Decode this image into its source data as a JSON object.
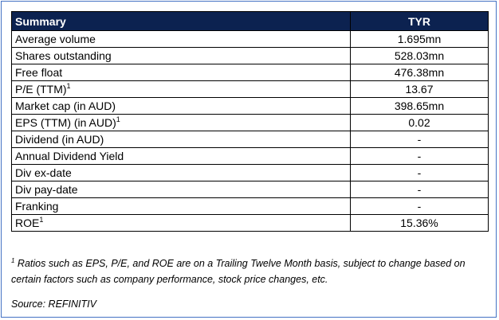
{
  "table": {
    "header": {
      "label": "Summary",
      "value": "TYR"
    },
    "rows": [
      {
        "label": "Average volume",
        "footnote": "",
        "value": "1.695mn"
      },
      {
        "label": "Shares outstanding",
        "footnote": "",
        "value": "528.03mn"
      },
      {
        "label": "Free float",
        "footnote": "",
        "value": "476.38mn"
      },
      {
        "label": "P/E (TTM)",
        "footnote": "1",
        "value": "13.67"
      },
      {
        "label": "Market cap (in AUD)",
        "footnote": "",
        "value": "398.65mn"
      },
      {
        "label": "EPS (TTM) (in AUD)",
        "footnote": "1",
        "value": "0.02"
      },
      {
        "label": "Dividend (in AUD)",
        "footnote": "",
        "value": "-"
      },
      {
        "label": "Annual Dividend Yield",
        "footnote": "",
        "value": "-"
      },
      {
        "label": "Div ex-date",
        "footnote": "",
        "value": "-"
      },
      {
        "label": "Div pay-date",
        "footnote": "",
        "value": "-"
      },
      {
        "label": "Franking",
        "footnote": "",
        "value": "-"
      },
      {
        "label": "ROE",
        "footnote": "1",
        "value": "15.36%"
      }
    ]
  },
  "footnote": {
    "marker": "1",
    "text": " Ratios such as EPS, P/E, and ROE are on a Trailing Twelve Month basis, subject to change based on certain factors such as company performance, stock price changes, etc."
  },
  "source": "Source: REFINITIV",
  "colors": {
    "header_bg": "#0c2250",
    "frame_border": "#4472c4"
  }
}
